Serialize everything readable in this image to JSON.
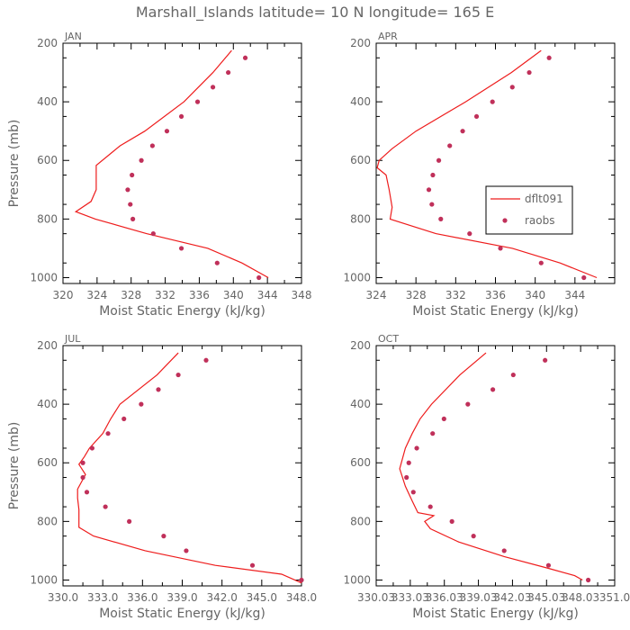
{
  "title": "Marshall_Islands  latitude= 10 N longitude= 165 E",
  "colors": {
    "line": "#ee1c1c",
    "dots": "#c0305a",
    "axes": "#000000",
    "text": "#666666"
  },
  "chart_data": [
    {
      "type": "line",
      "panel": "JAN",
      "xlabel": "Moist Static Energy (kJ/kg)",
      "ylabel": "Pressure (mb)",
      "xlim": [
        320,
        348
      ],
      "ylim": [
        1020,
        200
      ],
      "xticks": [
        320,
        324,
        328,
        332,
        336,
        340,
        344,
        348
      ],
      "xtick_labels": [
        "320",
        "324",
        "328",
        "332",
        "336",
        "340",
        "344",
        "348"
      ],
      "yticks": [
        200,
        400,
        600,
        800,
        1000
      ],
      "ytick_labels": [
        "200",
        "400",
        "600",
        "800",
        "1000"
      ],
      "series": [
        {
          "name": "dflt091",
          "style": "line",
          "points": [
            [
              339.8,
              225
            ],
            [
              337.6,
              300
            ],
            [
              334.2,
              400
            ],
            [
              329.6,
              500
            ],
            [
              326.7,
              550
            ],
            [
              323.9,
              617
            ],
            [
              323.9,
              700
            ],
            [
              323.3,
              740
            ],
            [
              321.5,
              775
            ],
            [
              323.8,
              800
            ],
            [
              329.8,
              850
            ],
            [
              337,
              900
            ],
            [
              341,
              950
            ],
            [
              344.1,
              1000
            ]
          ]
        },
        {
          "name": "raobs",
          "style": "dots",
          "points": [
            [
              341.4,
              250
            ],
            [
              339.4,
              300
            ],
            [
              337.6,
              350
            ],
            [
              335.8,
              400
            ],
            [
              333.9,
              450
            ],
            [
              332.2,
              500
            ],
            [
              330.5,
              550
            ],
            [
              329.2,
              600
            ],
            [
              328.1,
              650
            ],
            [
              327.6,
              700
            ],
            [
              327.9,
              750
            ],
            [
              328.2,
              800
            ],
            [
              330.6,
              850
            ],
            [
              333.9,
              900
            ],
            [
              338.1,
              950
            ],
            [
              343,
              1000
            ]
          ]
        }
      ]
    },
    {
      "type": "line",
      "panel": "APR",
      "xlabel": "Moist Static Energy (kJ/kg)",
      "ylabel": "",
      "xlim": [
        324,
        348
      ],
      "ylim": [
        1020,
        200
      ],
      "xticks": [
        324,
        328,
        332,
        336,
        340,
        344
      ],
      "xtick_labels": [
        "324",
        "328",
        "332",
        "336",
        "340",
        "344"
      ],
      "yticks": [
        200,
        400,
        600,
        800,
        1000
      ],
      "ytick_labels": [
        "200",
        "400",
        "600",
        "800",
        "1000"
      ],
      "legend": {
        "position": "right",
        "entries": [
          "dflt091",
          "raobs"
        ]
      },
      "series": [
        {
          "name": "dflt091",
          "style": "line",
          "points": [
            [
              340.6,
              225
            ],
            [
              337.6,
              300
            ],
            [
              333,
              400
            ],
            [
              328,
              500
            ],
            [
              325.6,
              560
            ],
            [
              324.3,
              600
            ],
            [
              324.1,
              625
            ],
            [
              325,
              650
            ],
            [
              325.3,
              700
            ],
            [
              325.6,
              760
            ],
            [
              325.4,
              800
            ],
            [
              330,
              850
            ],
            [
              337.7,
              900
            ],
            [
              342.5,
              950
            ],
            [
              346.2,
              1000
            ]
          ]
        },
        {
          "name": "raobs",
          "style": "dots",
          "points": [
            [
              341.4,
              250
            ],
            [
              339.4,
              300
            ],
            [
              337.7,
              350
            ],
            [
              335.7,
              400
            ],
            [
              334.1,
              450
            ],
            [
              332.7,
              500
            ],
            [
              331.4,
              550
            ],
            [
              330.3,
              600
            ],
            [
              329.7,
              650
            ],
            [
              329.3,
              700
            ],
            [
              329.6,
              750
            ],
            [
              330.5,
              800
            ],
            [
              333.4,
              850
            ],
            [
              336.5,
              900
            ],
            [
              340.6,
              950
            ],
            [
              344.9,
              1000
            ]
          ]
        }
      ]
    },
    {
      "type": "line",
      "panel": "JUL",
      "xlabel": "Moist Static Energy (kJ/kg)",
      "ylabel": "Pressure (mb)",
      "xlim": [
        330,
        348
      ],
      "ylim": [
        1020,
        200
      ],
      "xticks": [
        330,
        333,
        336,
        339,
        342,
        345,
        348
      ],
      "xtick_labels": [
        "330.0",
        "333.0",
        "336.0",
        "339.0",
        "342.0",
        "345.0",
        "348.0"
      ],
      "yticks": [
        200,
        400,
        600,
        800,
        1000
      ],
      "ytick_labels": [
        "200",
        "400",
        "600",
        "800",
        "1000"
      ],
      "series": [
        {
          "name": "dflt091",
          "style": "line",
          "points": [
            [
              338.7,
              225
            ],
            [
              337.1,
              300
            ],
            [
              334.3,
              400
            ],
            [
              333.6,
              450
            ],
            [
              333,
              500
            ],
            [
              332,
              550
            ],
            [
              331.6,
              580
            ],
            [
              331.2,
              605
            ],
            [
              331.7,
              640
            ],
            [
              331.1,
              690
            ],
            [
              331.1,
              720
            ],
            [
              331.2,
              760
            ],
            [
              331.2,
              820
            ],
            [
              332.3,
              850
            ],
            [
              336.2,
              900
            ],
            [
              341.5,
              950
            ],
            [
              346.5,
              980
            ],
            [
              348,
              1010
            ]
          ]
        },
        {
          "name": "raobs",
          "style": "dots",
          "points": [
            [
              340.8,
              250
            ],
            [
              338.7,
              300
            ],
            [
              337.2,
              350
            ],
            [
              335.9,
              400
            ],
            [
              334.6,
              450
            ],
            [
              333.4,
              500
            ],
            [
              332.2,
              550
            ],
            [
              331.5,
              600
            ],
            [
              331.5,
              650
            ],
            [
              331.8,
              700
            ],
            [
              333.2,
              750
            ],
            [
              335,
              800
            ],
            [
              337.6,
              850
            ],
            [
              339.3,
              900
            ],
            [
              344.3,
              950
            ],
            [
              348,
              1000
            ]
          ]
        }
      ]
    },
    {
      "type": "line",
      "panel": "OCT",
      "xlabel": "Moist Static Energy (kJ/kg)",
      "ylabel": "",
      "xlim": [
        330.03,
        351.03
      ],
      "ylim": [
        1020,
        200
      ],
      "xticks": [
        330.03,
        333.03,
        336.03,
        339.03,
        342.03,
        345.03,
        348.03,
        351.03
      ],
      "xtick_labels": [
        "330.03",
        "333.03",
        "336.03",
        "339.03",
        "342.03",
        "345.03",
        "348.03",
        "351.0"
      ],
      "yticks": [
        200,
        400,
        600,
        800,
        1000
      ],
      "ytick_labels": [
        "200",
        "400",
        "600",
        "800",
        "1000"
      ],
      "series": [
        {
          "name": "dflt091",
          "style": "line",
          "points": [
            [
              339.7,
              225
            ],
            [
              337.4,
              300
            ],
            [
              334.9,
              400
            ],
            [
              333.9,
              450
            ],
            [
              333.2,
              500
            ],
            [
              332.6,
              550
            ],
            [
              332.1,
              620
            ],
            [
              332.6,
              680
            ],
            [
              333.2,
              730
            ],
            [
              333.7,
              770
            ],
            [
              335.1,
              780
            ],
            [
              334.3,
              800
            ],
            [
              334.8,
              825
            ],
            [
              337.3,
              870
            ],
            [
              341.3,
              920
            ],
            [
              345.2,
              960
            ],
            [
              347.5,
              985
            ],
            [
              348.2,
              1000
            ]
          ]
        },
        {
          "name": "raobs",
          "style": "dots",
          "points": [
            [
              344.9,
              250
            ],
            [
              342.1,
              300
            ],
            [
              340.3,
              350
            ],
            [
              338.1,
              400
            ],
            [
              336,
              450
            ],
            [
              335,
              500
            ],
            [
              333.6,
              550
            ],
            [
              332.9,
              600
            ],
            [
              332.7,
              650
            ],
            [
              333.3,
              700
            ],
            [
              334.8,
              750
            ],
            [
              336.7,
              800
            ],
            [
              338.6,
              850
            ],
            [
              341.3,
              900
            ],
            [
              345.2,
              950
            ],
            [
              348.7,
              1000
            ]
          ]
        }
      ]
    }
  ]
}
